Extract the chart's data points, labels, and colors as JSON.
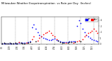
{
  "title": "Milwaukee Weather Evapotranspiration  vs Rain per Day  (Inches)",
  "title_fontsize": 2.8,
  "background_color": "#ffffff",
  "grid_color": "#888888",
  "legend_labels": [
    "ET",
    "Rain"
  ],
  "legend_colors": [
    "#0000ff",
    "#ff0000"
  ],
  "ylim": [
    0,
    0.45
  ],
  "xlim": [
    -0.5,
    51.5
  ],
  "xtick_fontsize": 1.8,
  "ytick_fontsize": 1.8,
  "x_et": [
    0,
    1,
    2,
    3,
    4,
    5,
    6,
    7,
    8,
    9,
    10,
    11,
    12,
    13,
    14,
    15,
    16,
    17,
    18,
    19,
    20,
    21,
    22,
    23,
    24,
    25,
    26,
    27,
    28,
    29,
    30,
    31,
    32,
    33,
    34,
    35,
    36,
    37,
    38,
    39,
    40,
    41,
    42,
    43,
    44,
    45,
    46,
    47,
    48,
    49,
    50,
    51
  ],
  "y_et": [
    0.01,
    0.01,
    0.01,
    0.01,
    0.01,
    0.01,
    0.01,
    0.01,
    0.01,
    0.02,
    0.02,
    0.02,
    0.02,
    0.02,
    0.03,
    0.04,
    0.28,
    0.32,
    0.25,
    0.2,
    0.15,
    0.12,
    0.1,
    0.09,
    0.08,
    0.07,
    0.07,
    0.08,
    0.09,
    0.07,
    0.06,
    0.04,
    0.03,
    0.03,
    0.03,
    0.03,
    0.04,
    0.04,
    0.04,
    0.04,
    0.3,
    0.4,
    0.35,
    0.25,
    0.2,
    0.15,
    0.12,
    0.1,
    0.08,
    0.07,
    0.05,
    0.04
  ],
  "x_rain": [
    9,
    13,
    16,
    17,
    19,
    20,
    21,
    22,
    23,
    24,
    25,
    26,
    27,
    28,
    29,
    34,
    38,
    40,
    41,
    43,
    44,
    45,
    46,
    47,
    48,
    49,
    50,
    51
  ],
  "y_rain": [
    0.03,
    0.02,
    0.08,
    0.12,
    0.05,
    0.1,
    0.13,
    0.16,
    0.18,
    0.2,
    0.22,
    0.18,
    0.15,
    0.12,
    0.08,
    0.02,
    0.02,
    0.04,
    0.06,
    0.08,
    0.12,
    0.15,
    0.18,
    0.2,
    0.22,
    0.25,
    0.22,
    0.18
  ],
  "x_black": [
    0,
    1,
    2,
    3,
    4,
    5,
    6,
    7,
    8,
    10,
    11,
    12,
    14,
    15,
    18,
    30,
    31,
    32,
    33,
    35,
    36,
    37,
    39,
    42
  ],
  "y_black": [
    0.01,
    0.02,
    0.01,
    0.01,
    0.02,
    0.01,
    0.01,
    0.02,
    0.01,
    0.02,
    0.01,
    0.01,
    0.02,
    0.03,
    0.04,
    0.05,
    0.03,
    0.02,
    0.02,
    0.02,
    0.03,
    0.03,
    0.03,
    0.04
  ],
  "xtick_positions": [
    0,
    4,
    8,
    12,
    16,
    20,
    24,
    28,
    32,
    36,
    40,
    44,
    48
  ],
  "xtick_labels": [
    "1/1",
    "1/29",
    "2/26",
    "3/26",
    "4/23",
    "5/21",
    "6/18",
    "7/16",
    "8/13",
    "9/10",
    "10/8",
    "11/5",
    "12/3"
  ],
  "vline_positions": [
    7,
    14,
    21,
    28,
    35,
    42,
    49
  ],
  "ytick_positions": [
    0.0,
    0.1,
    0.2,
    0.3,
    0.4
  ],
  "ytick_labels": [
    "0",
    ".1",
    ".2",
    ".3",
    ".4"
  ],
  "marker_size": 1.5
}
